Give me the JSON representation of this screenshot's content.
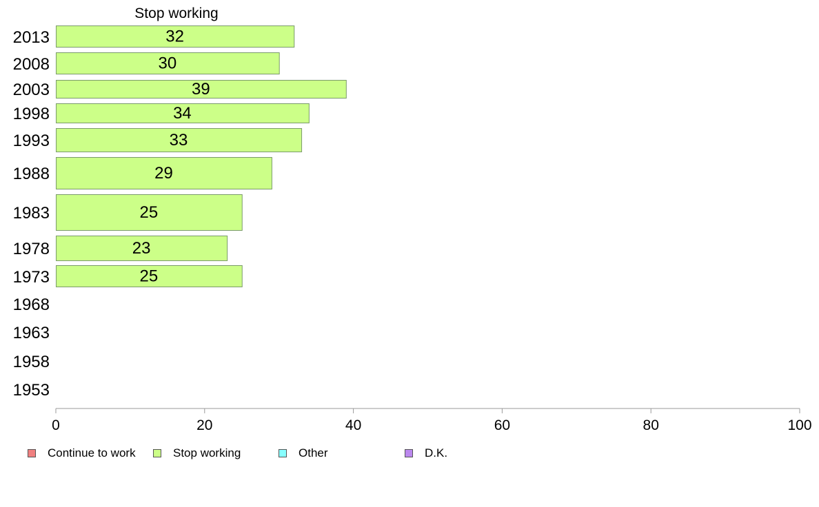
{
  "chart_data": {
    "type": "bar",
    "orientation": "horizontal",
    "title": "Stop working",
    "categories": [
      "2013",
      "2008",
      "2003",
      "1998",
      "1993",
      "1988",
      "1983",
      "1978",
      "1973",
      "1968",
      "1963",
      "1958",
      "1953"
    ],
    "series": [
      {
        "name": "Stop working",
        "color": "#ccff88",
        "values": [
          32,
          30,
          39,
          34,
          33,
          29,
          25,
          23,
          25,
          null,
          null,
          null,
          null
        ]
      }
    ],
    "xlim": [
      0,
      100
    ],
    "xticks": [
      0,
      20,
      40,
      60,
      80,
      100
    ],
    "xlabel": "",
    "ylabel": "",
    "grid": false,
    "legend_position": "bottom-left"
  },
  "legend": [
    {
      "label": "Continue to work",
      "color": "#f08080"
    },
    {
      "label": "Stop working",
      "color": "#ccff88"
    },
    {
      "label": "Other",
      "color": "#88ffff"
    },
    {
      "label": "D.K.",
      "color": "#bb88ee"
    }
  ]
}
